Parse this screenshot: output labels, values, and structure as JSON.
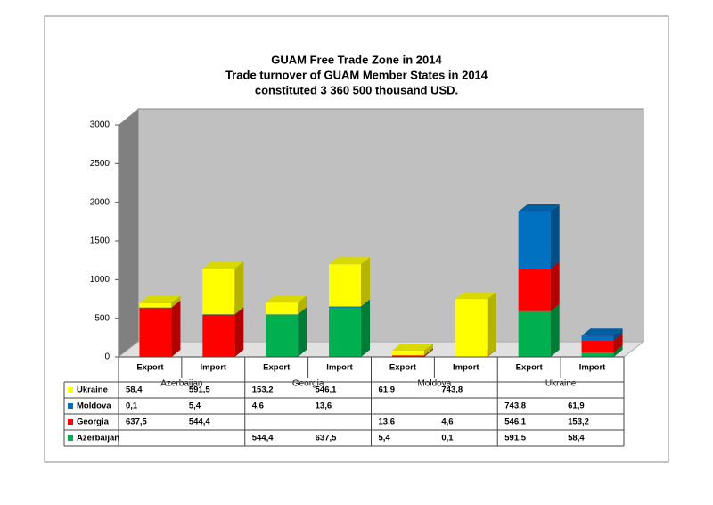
{
  "chart_data": {
    "type": "bar3d-stacked",
    "title": [
      "GUAM Free Trade Zone in 2014",
      "Trade turnover of GUAM Member States in 2014",
      "constituted 3 360 500 thousand USD."
    ],
    "categories": [
      "Export",
      "Import",
      "Export",
      "Import",
      "Export",
      "Import",
      "Export",
      "Import"
    ],
    "groups": [
      "Azerbaijan",
      "Georgia",
      "Moldova",
      "Ukraine"
    ],
    "series": [
      {
        "name": "Azerbaijan",
        "color": "#00b050",
        "values": [
          null,
          null,
          544.4,
          637.5,
          5.4,
          0.1,
          591.5,
          58.4
        ],
        "value_labels": [
          null,
          null,
          "544,4",
          "637,5",
          "5,4",
          "0,1",
          "591,5",
          "58,4"
        ]
      },
      {
        "name": "Georgia",
        "color": "#ff0000",
        "values": [
          637.5,
          544.4,
          null,
          null,
          13.6,
          4.6,
          546.1,
          153.2
        ],
        "value_labels": [
          "637,5",
          "544,4",
          null,
          null,
          "13,6",
          "4,6",
          "546,1",
          "153,2"
        ]
      },
      {
        "name": "Moldova",
        "color": "#0070c0",
        "values": [
          0.1,
          5.4,
          4.6,
          13.6,
          null,
          null,
          743.8,
          61.9
        ],
        "value_labels": [
          "0,1",
          "5,4",
          "4,6",
          "13,6",
          null,
          null,
          "743,8",
          "61,9"
        ]
      },
      {
        "name": "Ukraine",
        "color": "#ffff00",
        "values": [
          58.4,
          591.5,
          153.2,
          546.1,
          61.9,
          743.8,
          null,
          null
        ],
        "value_labels": [
          "58,4",
          "591,5",
          "153,2",
          "546,1",
          "61,9",
          "743,8",
          null,
          null
        ]
      }
    ],
    "ylim": [
      0,
      3000
    ],
    "yticks": [
      0,
      500,
      1000,
      1500,
      2000,
      2500,
      3000
    ],
    "grid": false,
    "data_table": true
  }
}
